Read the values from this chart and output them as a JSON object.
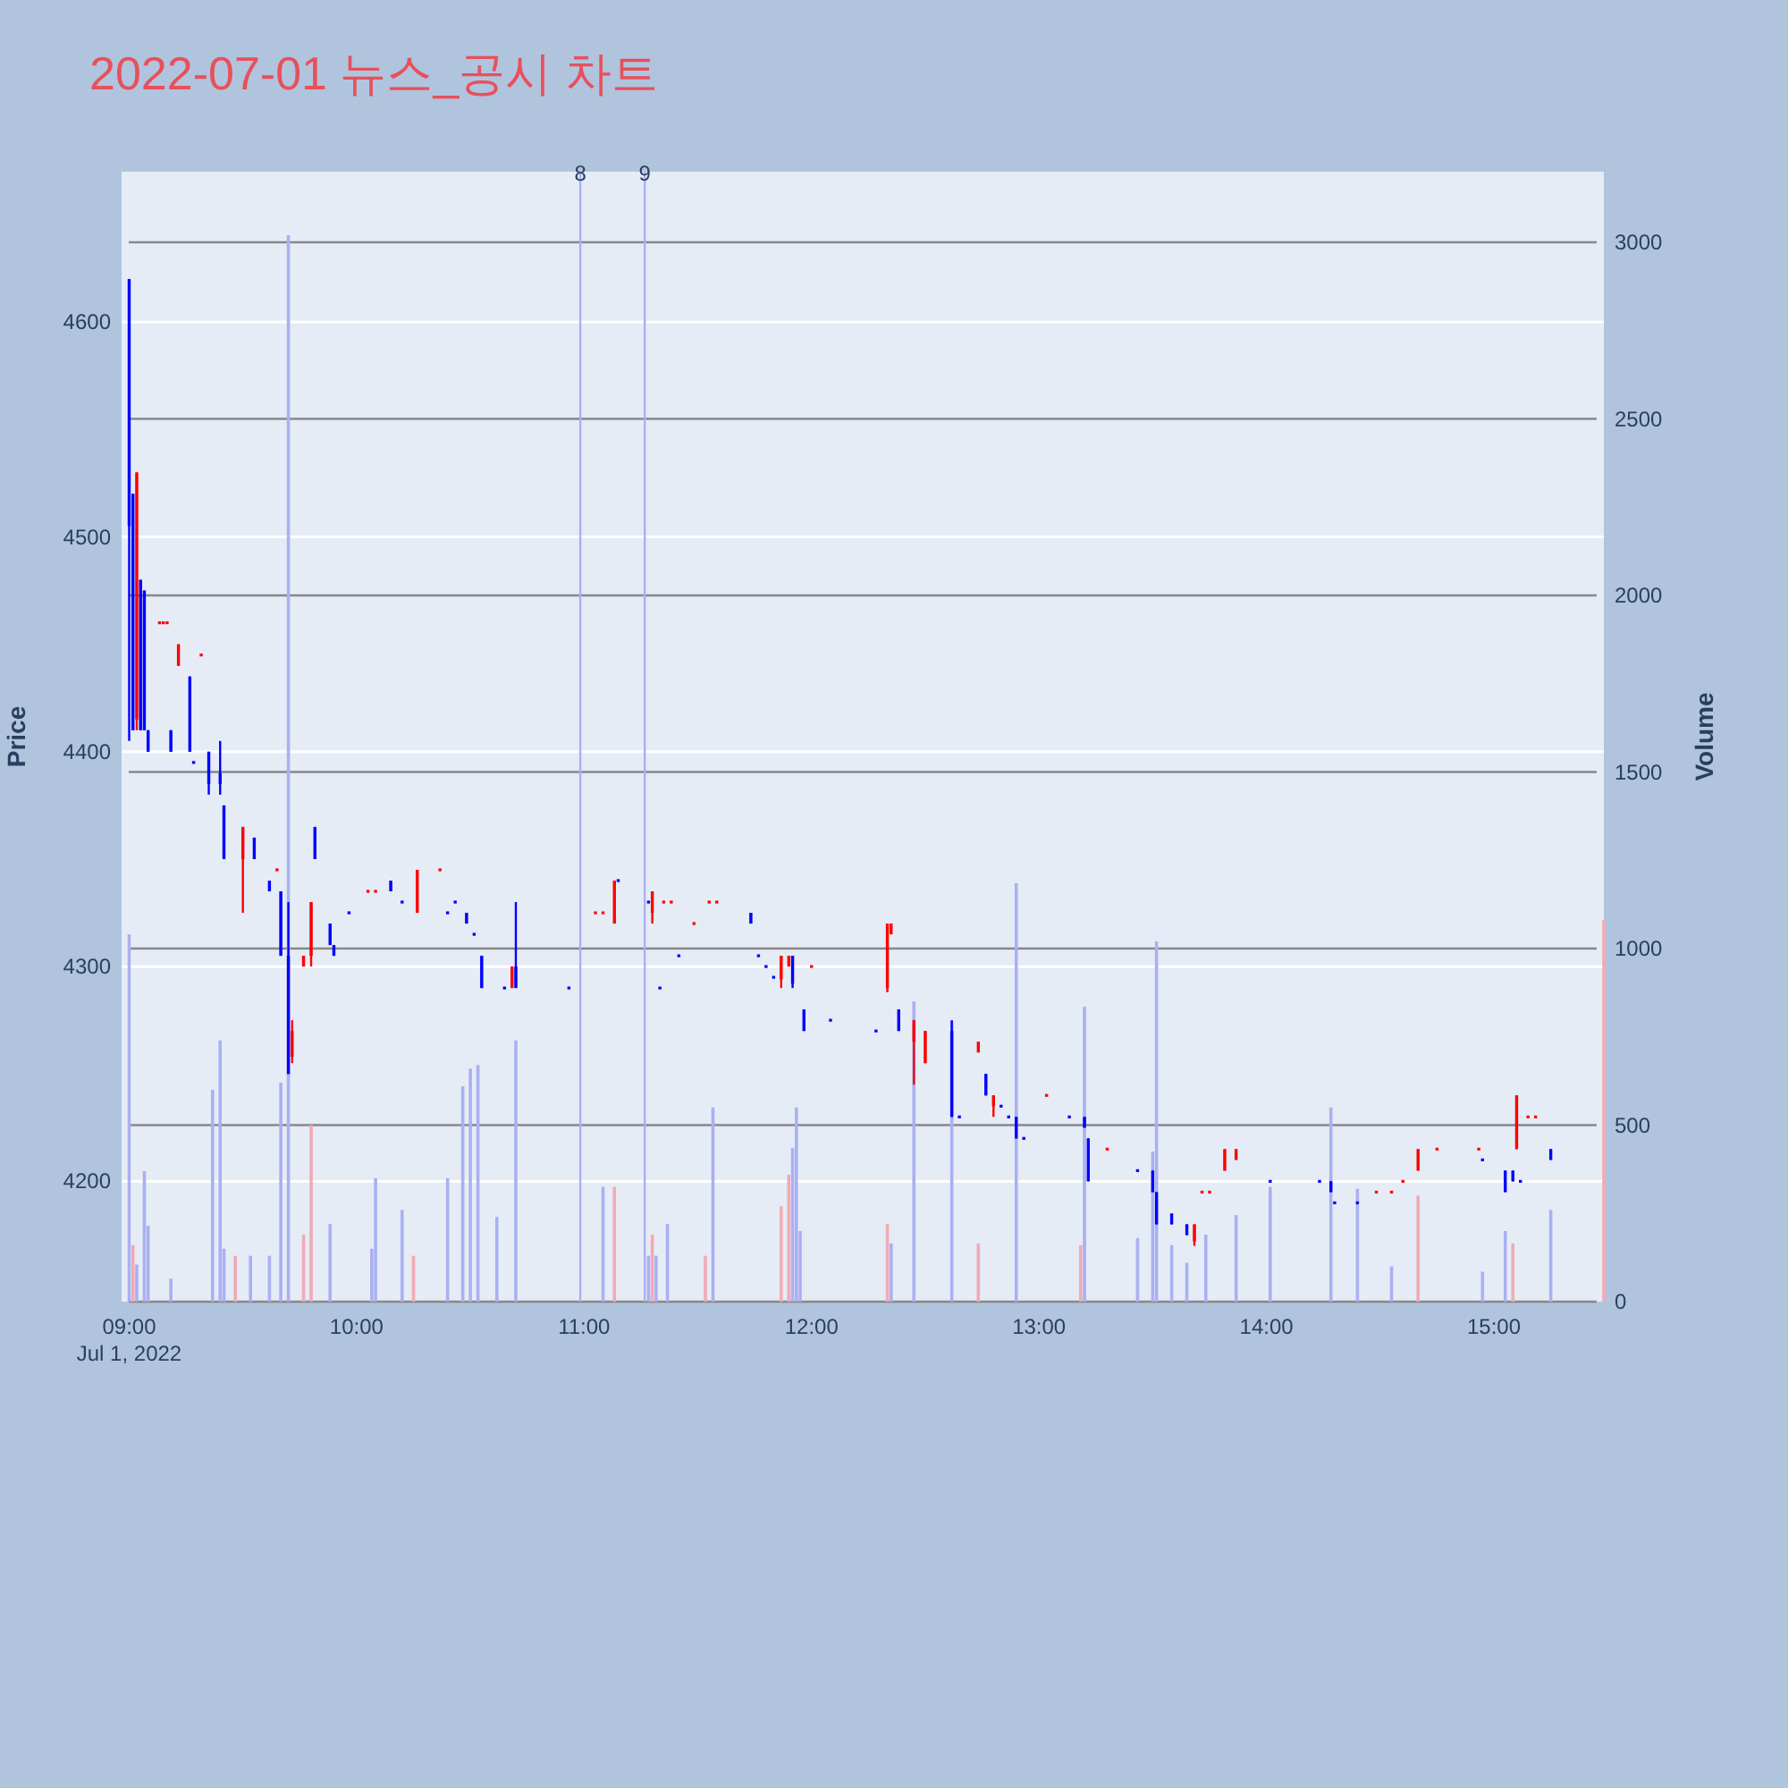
{
  "chart_data": {
    "type": "candlestick",
    "title": "2022-07-01 뉴스_공시 차트",
    "ylabel": "Price",
    "y2label": "Volume",
    "grid": "y",
    "xlim": [
      "2022-07-01T08:58",
      "2022-07-01T15:29"
    ],
    "xticks": [
      {
        "value": "2022-07-01T09:00",
        "label": "09:00\nJul 1, 2022"
      },
      {
        "value": "2022-07-01T10:00",
        "label": "10:00"
      },
      {
        "value": "2022-07-01T11:00",
        "label": "11:00"
      },
      {
        "value": "2022-07-01T12:00",
        "label": "12:00"
      },
      {
        "value": "2022-07-01T13:00",
        "label": "13:00"
      },
      {
        "value": "2022-07-01T14:00",
        "label": "14:00"
      },
      {
        "value": "2022-07-01T15:00",
        "label": "15:00"
      }
    ],
    "ylim": [
      4144,
      4670
    ],
    "yticks": [
      4200,
      4300,
      4400,
      4500,
      4600
    ],
    "y2lim": [
      0,
      3200
    ],
    "y2ticks": [
      0,
      500,
      1000,
      1500,
      2000,
      2500,
      3000
    ],
    "ref_lines": [
      {
        "axis": "x",
        "value": "2022-07-01T10:59",
        "label": "8",
        "color": "#aab0f2"
      },
      {
        "axis": "x",
        "value": "2022-07-01T11:16",
        "label": "9",
        "color": "#aab0f2"
      }
    ],
    "series": [
      {
        "type": "bar",
        "axis": "y2",
        "x": [
          "2022-07-01T09:00",
          "2022-07-01T09:01",
          "2022-07-01T09:02",
          "2022-07-01T09:04",
          "2022-07-01T09:05",
          "2022-07-01T09:11",
          "2022-07-01T09:22",
          "2022-07-01T09:24",
          "2022-07-01T09:25",
          "2022-07-01T09:28",
          "2022-07-01T09:32",
          "2022-07-01T09:37",
          "2022-07-01T09:40",
          "2022-07-01T09:42",
          "2022-07-01T09:46",
          "2022-07-01T09:48",
          "2022-07-01T09:53",
          "2022-07-01T10:04",
          "2022-07-01T10:05",
          "2022-07-01T10:12",
          "2022-07-01T10:15",
          "2022-07-01T10:24",
          "2022-07-01T10:28",
          "2022-07-01T10:30",
          "2022-07-01T10:32",
          "2022-07-01T10:37",
          "2022-07-01T10:42",
          "2022-07-01T11:05",
          "2022-07-01T11:08",
          "2022-07-01T11:17",
          "2022-07-01T11:18",
          "2022-07-01T11:19",
          "2022-07-01T11:22",
          "2022-07-01T11:32",
          "2022-07-01T11:34",
          "2022-07-01T11:52",
          "2022-07-01T11:54",
          "2022-07-01T11:55",
          "2022-07-01T11:56",
          "2022-07-01T11:57",
          "2022-07-01T12:20",
          "2022-07-01T12:21",
          "2022-07-01T12:27",
          "2022-07-01T12:37",
          "2022-07-01T12:44",
          "2022-07-01T12:54",
          "2022-07-01T13:11",
          "2022-07-01T13:12",
          "2022-07-01T13:26",
          "2022-07-01T13:30",
          "2022-07-01T13:31",
          "2022-07-01T13:35",
          "2022-07-01T13:39",
          "2022-07-01T13:44",
          "2022-07-01T13:52",
          "2022-07-01T14:01",
          "2022-07-01T14:17",
          "2022-07-01T14:24",
          "2022-07-01T14:33",
          "2022-07-01T14:40",
          "2022-07-01T14:57",
          "2022-07-01T15:03",
          "2022-07-01T15:05",
          "2022-07-01T15:15",
          "2022-07-01T15:29"
        ],
        "values": [
          1040,
          160,
          105,
          370,
          215,
          65,
          600,
          740,
          150,
          130,
          130,
          130,
          620,
          3020,
          190,
          500,
          220,
          150,
          350,
          260,
          130,
          350,
          610,
          660,
          670,
          240,
          740,
          325,
          325,
          130,
          190,
          130,
          220,
          130,
          550,
          270,
          360,
          435,
          550,
          200,
          220,
          165,
          850,
          795,
          165,
          1185,
          160,
          835,
          180,
          425,
          1020,
          160,
          110,
          190,
          245,
          325,
          550,
          320,
          100,
          300,
          85,
          200,
          165,
          260,
          1080
        ],
        "colors": [
          "#aab0f2",
          "#f2aab4",
          "#aab0f2",
          "#aab0f2",
          "#aab0f2",
          "#aab0f2",
          "#aab0f2",
          "#aab0f2",
          "#aab0f2",
          "#f2aab4",
          "#aab0f2",
          "#aab0f2",
          "#aab0f2",
          "#aab0f2",
          "#f2aab4",
          "#f2aab4",
          "#aab0f2",
          "#aab0f2",
          "#aab0f2",
          "#aab0f2",
          "#f2aab4",
          "#aab0f2",
          "#aab0f2",
          "#aab0f2",
          "#aab0f2",
          "#aab0f2",
          "#aab0f2",
          "#aab0f2",
          "#f2aab4",
          "#aab0f2",
          "#f2aab4",
          "#aab0f2",
          "#aab0f2",
          "#f2aab4",
          "#aab0f2",
          "#f2aab4",
          "#f2aab4",
          "#aab0f2",
          "#aab0f2",
          "#aab0f2",
          "#f2aab4",
          "#aab0f2",
          "#aab0f2",
          "#aab0f2",
          "#f2aab4",
          "#aab0f2",
          "#f2aab4",
          "#aab0f2",
          "#aab0f2",
          "#aab0f2",
          "#aab0f2",
          "#aab0f2",
          "#aab0f2",
          "#aab0f2",
          "#aab0f2",
          "#aab0f2",
          "#aab0f2",
          "#aab0f2",
          "#aab0f2",
          "#f2aab4",
          "#aab0f2",
          "#aab0f2",
          "#f2aab4",
          "#aab0f2",
          "#f2aab4"
        ]
      },
      {
        "x": [
          "2022-07-01T09:00",
          "2022-07-01T09:01",
          "2022-07-01T09:02",
          "2022-07-01T09:03",
          "2022-07-01T09:04",
          "2022-07-01T09:05",
          "2022-07-01T09:08",
          "2022-07-01T09:09",
          "2022-07-01T09:10",
          "2022-07-01T09:11",
          "2022-07-01T09:13",
          "2022-07-01T09:16",
          "2022-07-01T09:17",
          "2022-07-01T09:19",
          "2022-07-01T09:21",
          "2022-07-01T09:24",
          "2022-07-01T09:25",
          "2022-07-01T09:30",
          "2022-07-01T09:33",
          "2022-07-01T09:37",
          "2022-07-01T09:39",
          "2022-07-01T09:40",
          "2022-07-01T09:42",
          "2022-07-01T09:43",
          "2022-07-01T09:46",
          "2022-07-01T09:48",
          "2022-07-01T09:49",
          "2022-07-01T09:53",
          "2022-07-01T09:54",
          "2022-07-01T09:58",
          "2022-07-01T10:03",
          "2022-07-01T10:05",
          "2022-07-01T10:09",
          "2022-07-01T10:12",
          "2022-07-01T10:16",
          "2022-07-01T10:22",
          "2022-07-01T10:24",
          "2022-07-01T10:26",
          "2022-07-01T10:29",
          "2022-07-01T10:31",
          "2022-07-01T10:33",
          "2022-07-01T10:39",
          "2022-07-01T10:41",
          "2022-07-01T10:42",
          "2022-07-01T10:56",
          "2022-07-01T11:03",
          "2022-07-01T11:05",
          "2022-07-01T11:08",
          "2022-07-01T11:09",
          "2022-07-01T11:17",
          "2022-07-01T11:18",
          "2022-07-01T11:20",
          "2022-07-01T11:21",
          "2022-07-01T11:23",
          "2022-07-01T11:25",
          "2022-07-01T11:29",
          "2022-07-01T11:33",
          "2022-07-01T11:35",
          "2022-07-01T11:44",
          "2022-07-01T11:46",
          "2022-07-01T11:48",
          "2022-07-01T11:50",
          "2022-07-01T11:52",
          "2022-07-01T11:54",
          "2022-07-01T11:55",
          "2022-07-01T11:58",
          "2022-07-01T12:00",
          "2022-07-01T12:05",
          "2022-07-01T12:17",
          "2022-07-01T12:20",
          "2022-07-01T12:21",
          "2022-07-01T12:23",
          "2022-07-01T12:27",
          "2022-07-01T12:30",
          "2022-07-01T12:37",
          "2022-07-01T12:39",
          "2022-07-01T12:44",
          "2022-07-01T12:46",
          "2022-07-01T12:48",
          "2022-07-01T12:50",
          "2022-07-01T12:52",
          "2022-07-01T12:54",
          "2022-07-01T12:56",
          "2022-07-01T13:02",
          "2022-07-01T13:08",
          "2022-07-01T13:12",
          "2022-07-01T13:13",
          "2022-07-01T13:18",
          "2022-07-01T13:26",
          "2022-07-01T13:30",
          "2022-07-01T13:31",
          "2022-07-01T13:35",
          "2022-07-01T13:39",
          "2022-07-01T13:41",
          "2022-07-01T13:43",
          "2022-07-01T13:45",
          "2022-07-01T13:49",
          "2022-07-01T13:52",
          "2022-07-01T14:01",
          "2022-07-01T14:14",
          "2022-07-01T14:17",
          "2022-07-01T14:18",
          "2022-07-01T14:24",
          "2022-07-01T14:29",
          "2022-07-01T14:33",
          "2022-07-01T14:36",
          "2022-07-01T14:40",
          "2022-07-01T14:45",
          "2022-07-01T14:56",
          "2022-07-01T14:57",
          "2022-07-01T15:03",
          "2022-07-01T15:05",
          "2022-07-01T15:06",
          "2022-07-01T15:07",
          "2022-07-01T15:09",
          "2022-07-01T15:11",
          "2022-07-01T15:15"
        ],
        "ohlc": [
          [
            4620,
            4620,
            4405,
            4505
          ],
          [
            4520,
            4520,
            4410,
            4410
          ],
          [
            4415,
            4530,
            4410,
            4530
          ],
          [
            4480,
            4480,
            4410,
            4410
          ],
          [
            4475,
            4475,
            4410,
            4410
          ],
          [
            4410,
            4410,
            4400,
            4400
          ],
          [
            4460,
            4460,
            4460,
            4460
          ],
          [
            4460,
            4460,
            4460,
            4460
          ],
          [
            4460,
            4460,
            4460,
            4460
          ],
          [
            4410,
            4410,
            4400,
            4400
          ],
          [
            4440,
            4450,
            4440,
            4450
          ],
          [
            4435,
            4435,
            4400,
            4400
          ],
          [
            4395,
            4395,
            4395,
            4395
          ],
          [
            4445,
            4445,
            4445,
            4445
          ],
          [
            4400,
            4400,
            4380,
            4385
          ],
          [
            4390,
            4405,
            4380,
            4385
          ],
          [
            4375,
            4375,
            4350,
            4350
          ],
          [
            4350,
            4365,
            4325,
            4365
          ],
          [
            4360,
            4360,
            4350,
            4350
          ],
          [
            4340,
            4340,
            4335,
            4335
          ],
          [
            4345,
            4345,
            4345,
            4345
          ],
          [
            4335,
            4335,
            4305,
            4305
          ],
          [
            4305,
            4330,
            4250,
            4250
          ],
          [
            4258,
            4275,
            4255,
            4270
          ],
          [
            4300,
            4305,
            4300,
            4305
          ],
          [
            4305,
            4330,
            4300,
            4330
          ],
          [
            4365,
            4365,
            4350,
            4350
          ],
          [
            4320,
            4320,
            4310,
            4310
          ],
          [
            4310,
            4310,
            4305,
            4305
          ],
          [
            4325,
            4325,
            4325,
            4325
          ],
          [
            4335,
            4335,
            4335,
            4335
          ],
          [
            4335,
            4335,
            4335,
            4335
          ],
          [
            4340,
            4340,
            4335,
            4335
          ],
          [
            4330,
            4330,
            4330,
            4330
          ],
          [
            4325,
            4345,
            4325,
            4345
          ],
          [
            4345,
            4345,
            4345,
            4345
          ],
          [
            4325,
            4325,
            4325,
            4325
          ],
          [
            4330,
            4330,
            4330,
            4330
          ],
          [
            4325,
            4325,
            4320,
            4320
          ],
          [
            4315,
            4315,
            4315,
            4315
          ],
          [
            4305,
            4305,
            4290,
            4290
          ],
          [
            4290,
            4290,
            4290,
            4290
          ],
          [
            4290,
            4300,
            4290,
            4300
          ],
          [
            4300,
            4330,
            4290,
            4290
          ],
          [
            4290,
            4290,
            4290,
            4290
          ],
          [
            4325,
            4325,
            4325,
            4325
          ],
          [
            4325,
            4325,
            4325,
            4325
          ],
          [
            4320,
            4340,
            4320,
            4340
          ],
          [
            4340,
            4340,
            4340,
            4340
          ],
          [
            4330,
            4330,
            4330,
            4330
          ],
          [
            4325,
            4335,
            4320,
            4335
          ],
          [
            4290,
            4290,
            4290,
            4290
          ],
          [
            4330,
            4330,
            4330,
            4330
          ],
          [
            4330,
            4330,
            4330,
            4330
          ],
          [
            4305,
            4305,
            4305,
            4305
          ],
          [
            4320,
            4320,
            4320,
            4320
          ],
          [
            4330,
            4330,
            4330,
            4330
          ],
          [
            4330,
            4330,
            4330,
            4330
          ],
          [
            4325,
            4325,
            4320,
            4320
          ],
          [
            4305,
            4305,
            4305,
            4305
          ],
          [
            4300,
            4300,
            4300,
            4300
          ],
          [
            4295,
            4295,
            4295,
            4295
          ],
          [
            4294,
            4305,
            4290,
            4305
          ],
          [
            4300,
            4305,
            4300,
            4305
          ],
          [
            4305,
            4305,
            4290,
            4292
          ],
          [
            4280,
            4280,
            4270,
            4270
          ],
          [
            4300,
            4300,
            4300,
            4300
          ],
          [
            4275,
            4275,
            4275,
            4275
          ],
          [
            4270,
            4270,
            4270,
            4270
          ],
          [
            4290,
            4320,
            4288,
            4320
          ],
          [
            4315,
            4320,
            4315,
            4320
          ],
          [
            4280,
            4280,
            4270,
            4270
          ],
          [
            4265,
            4275,
            4245,
            4275
          ],
          [
            4255,
            4270,
            4255,
            4270
          ],
          [
            4270,
            4275,
            4230,
            4230
          ],
          [
            4230,
            4230,
            4230,
            4230
          ],
          [
            4260,
            4265,
            4260,
            4265
          ],
          [
            4250,
            4250,
            4240,
            4240
          ],
          [
            4235,
            4240,
            4230,
            4240
          ],
          [
            4235,
            4235,
            4235,
            4235
          ],
          [
            4230,
            4230,
            4230,
            4230
          ],
          [
            4230,
            4230,
            4220,
            4220
          ],
          [
            4220,
            4220,
            4220,
            4220
          ],
          [
            4240,
            4240,
            4240,
            4240
          ],
          [
            4230,
            4230,
            4230,
            4230
          ],
          [
            4230,
            4230,
            4225,
            4225
          ],
          [
            4220,
            4220,
            4200,
            4200
          ],
          [
            4215,
            4215,
            4215,
            4215
          ],
          [
            4205,
            4205,
            4205,
            4205
          ],
          [
            4205,
            4205,
            4195,
            4195
          ],
          [
            4195,
            4195,
            4180,
            4180
          ],
          [
            4185,
            4185,
            4180,
            4180
          ],
          [
            4180,
            4180,
            4175,
            4175
          ],
          [
            4172,
            4180,
            4170,
            4180
          ],
          [
            4195,
            4195,
            4195,
            4195
          ],
          [
            4195,
            4195,
            4195,
            4195
          ],
          [
            4205,
            4215,
            4205,
            4215
          ],
          [
            4210,
            4215,
            4210,
            4215
          ],
          [
            4200,
            4200,
            4200,
            4200
          ],
          [
            4200,
            4200,
            4200,
            4200
          ],
          [
            4200,
            4200,
            4195,
            4195
          ],
          [
            4190,
            4190,
            4190,
            4190
          ],
          [
            4190,
            4190,
            4190,
            4190
          ],
          [
            4195,
            4195,
            4195,
            4195
          ],
          [
            4195,
            4195,
            4195,
            4195
          ],
          [
            4200,
            4200,
            4200,
            4200
          ],
          [
            4205,
            4215,
            4205,
            4215
          ],
          [
            4215,
            4215,
            4215,
            4215
          ],
          [
            4215,
            4215,
            4215,
            4215
          ],
          [
            4210,
            4210,
            4210,
            4210
          ],
          [
            4205,
            4205,
            4195,
            4195
          ],
          [
            4205,
            4205,
            4200,
            4200
          ],
          [
            4215,
            4240,
            4215,
            4240
          ],
          [
            4200,
            4200,
            4200,
            4200
          ],
          [
            4230,
            4230,
            4230,
            4230
          ],
          [
            4230,
            4230,
            4230,
            4230
          ],
          [
            4215,
            4215,
            4210,
            4210
          ]
        ],
        "colors": [
          "#0000ff",
          "#0000ff",
          "#ff0000",
          "#0000ff",
          "#0000ff",
          "#0000ff",
          "#ff0000",
          "#ff0000",
          "#ff0000",
          "#0000ff",
          "#ff0000",
          "#0000ff",
          "#0000ff",
          "#ff0000",
          "#0000ff",
          "#0000ff",
          "#0000ff",
          "#ff0000",
          "#0000ff",
          "#0000ff",
          "#ff0000",
          "#0000ff",
          "#0000ff",
          "#ff0000",
          "#ff0000",
          "#ff0000",
          "#0000ff",
          "#0000ff",
          "#0000ff",
          "#0000ff",
          "#ff0000",
          "#ff0000",
          "#0000ff",
          "#0000ff",
          "#ff0000",
          "#ff0000",
          "#0000ff",
          "#0000ff",
          "#0000ff",
          "#0000ff",
          "#0000ff",
          "#0000ff",
          "#ff0000",
          "#0000ff",
          "#0000ff",
          "#ff0000",
          "#ff0000",
          "#ff0000",
          "#0000ff",
          "#0000ff",
          "#ff0000",
          "#0000ff",
          "#ff0000",
          "#ff0000",
          "#0000ff",
          "#ff0000",
          "#ff0000",
          "#ff0000",
          "#0000ff",
          "#0000ff",
          "#0000ff",
          "#0000ff",
          "#ff0000",
          "#ff0000",
          "#0000ff",
          "#0000ff",
          "#ff0000",
          "#0000ff",
          "#0000ff",
          "#ff0000",
          "#ff0000",
          "#0000ff",
          "#ff0000",
          "#ff0000",
          "#0000ff",
          "#0000ff",
          "#ff0000",
          "#0000ff",
          "#ff0000",
          "#0000ff",
          "#0000ff",
          "#0000ff",
          "#0000ff",
          "#ff0000",
          "#0000ff",
          "#0000ff",
          "#0000ff",
          "#ff0000",
          "#0000ff",
          "#0000ff",
          "#0000ff",
          "#0000ff",
          "#0000ff",
          "#ff0000",
          "#ff0000",
          "#ff0000",
          "#ff0000",
          "#ff0000",
          "#0000ff",
          "#0000ff",
          "#0000ff",
          "#0000ff",
          "#0000ff",
          "#ff0000",
          "#ff0000",
          "#ff0000",
          "#ff0000",
          "#ff0000",
          "#ff0000",
          "#0000ff",
          "#0000ff",
          "#0000ff",
          "#ff0000",
          "#0000ff",
          "#ff0000",
          "#ff0000",
          "#0000ff"
        ]
      }
    ]
  }
}
